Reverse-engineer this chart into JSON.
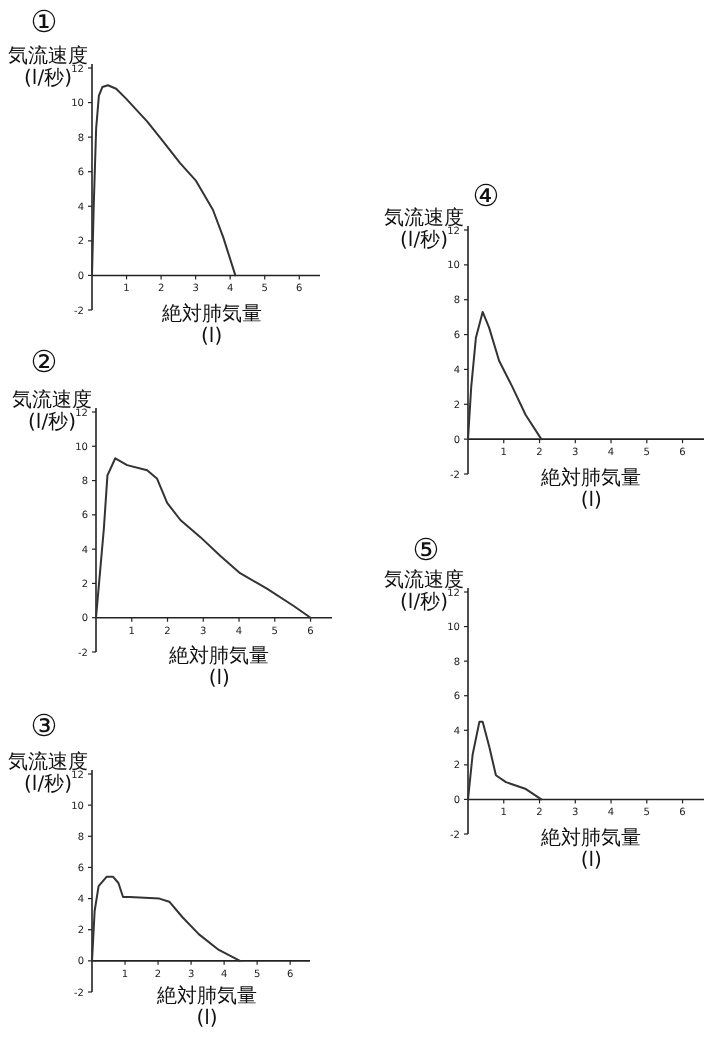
{
  "chart_data": [
    {
      "type": "line",
      "title": "①",
      "ylabel": "気流速度\n(l/秒)",
      "xlabel": "絶対肺気量\n(l)",
      "xlim": [
        0,
        6.6
      ],
      "ylim": [
        -2,
        12
      ],
      "xticks": [
        1,
        2,
        3,
        4,
        5,
        6
      ],
      "yticks": [
        -2,
        0,
        2,
        4,
        6,
        8,
        10,
        12
      ],
      "color": "#333333",
      "x": [
        0,
        0.05,
        0.12,
        0.2,
        0.3,
        0.46,
        0.7,
        1.0,
        1.6,
        2.0,
        2.55,
        3.0,
        3.5,
        3.8,
        4.15
      ],
      "values": [
        0,
        4,
        8.5,
        10.4,
        10.9,
        11.0,
        10.8,
        10.2,
        8.9,
        7.9,
        6.5,
        5.5,
        3.8,
        2.2,
        0
      ]
    },
    {
      "type": "line",
      "title": "②",
      "ylabel": "気流速度\n(l/秒)",
      "xlabel": "絶対肺気量\n(l)",
      "xlim": [
        0,
        6.6
      ],
      "ylim": [
        -2,
        12
      ],
      "xticks": [
        1,
        2,
        3,
        4,
        5,
        6
      ],
      "yticks": [
        -2,
        0,
        2,
        4,
        6,
        8,
        10,
        12
      ],
      "color": "#333333",
      "x": [
        0,
        0.22,
        0.32,
        0.54,
        0.87,
        1.43,
        1.71,
        1.99,
        2.36,
        2.92,
        3.48,
        4.03,
        4.78,
        5.52,
        6.0
      ],
      "values": [
        0,
        5.2,
        8.3,
        9.3,
        8.9,
        8.6,
        8.1,
        6.7,
        5.7,
        4.7,
        3.6,
        2.6,
        1.7,
        0.7,
        0
      ]
    },
    {
      "type": "line",
      "title": "③",
      "ylabel": "気流速度\n(l/秒)",
      "xlabel": "絶対肺気量\n(l)",
      "xlim": [
        0,
        6.6
      ],
      "ylim": [
        -2,
        12
      ],
      "xticks": [
        1,
        2,
        3,
        4,
        5,
        6
      ],
      "yticks": [
        -2,
        0,
        2,
        4,
        6,
        8,
        10,
        12
      ],
      "color": "#333333",
      "x": [
        0,
        0.08,
        0.2,
        0.44,
        0.64,
        0.8,
        0.94,
        1.14,
        2.04,
        2.34,
        2.74,
        3.24,
        3.84,
        4.48
      ],
      "values": [
        0,
        3.2,
        4.8,
        5.4,
        5.4,
        5.0,
        4.1,
        4.1,
        4.0,
        3.8,
        2.8,
        1.7,
        0.7,
        0
      ]
    },
    {
      "type": "line",
      "title": "④",
      "ylabel": "気流速度\n(l/秒)",
      "xlabel": "絶対肺気量\n(l)",
      "xlim": [
        0,
        6.6
      ],
      "ylim": [
        -2,
        12
      ],
      "xticks": [
        1,
        2,
        3,
        4,
        5,
        6
      ],
      "yticks": [
        -2,
        0,
        2,
        4,
        6,
        8,
        10,
        12
      ],
      "color": "#333333",
      "x": [
        0,
        0.09,
        0.22,
        0.41,
        0.59,
        0.87,
        1.24,
        1.61,
        2.05
      ],
      "values": [
        0,
        3,
        5.8,
        7.3,
        6.4,
        4.5,
        3,
        1.4,
        0
      ]
    },
    {
      "type": "line",
      "title": "⑤",
      "ylabel": "気流速度\n(l/秒)",
      "xlabel": "絶対肺気量\n(l)",
      "xlim": [
        0,
        6.6
      ],
      "ylim": [
        -2,
        12
      ],
      "xticks": [
        1,
        2,
        3,
        4,
        5,
        6
      ],
      "yticks": [
        -2,
        0,
        2,
        4,
        6,
        8,
        10,
        12
      ],
      "color": "#333333",
      "x": [
        0,
        0.13,
        0.32,
        0.41,
        0.6,
        0.78,
        1.06,
        1.62,
        2.05
      ],
      "values": [
        0,
        2.6,
        4.5,
        4.5,
        3.0,
        1.4,
        1.0,
        0.6,
        0
      ]
    }
  ]
}
